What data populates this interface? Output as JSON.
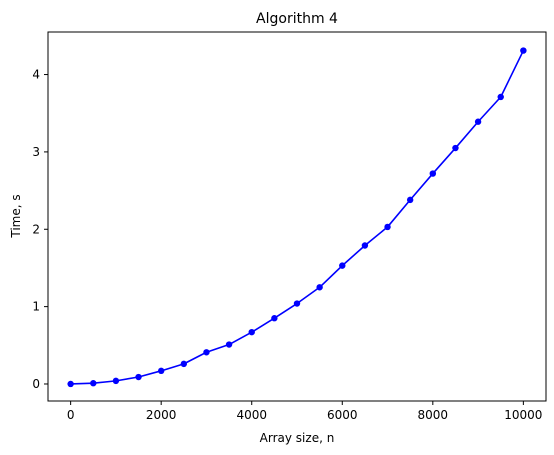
{
  "chart_data": {
    "type": "line",
    "title": "Algorithm 4",
    "xlabel": "Array size, n",
    "ylabel": "Time, s",
    "xlim": [
      -500,
      10500
    ],
    "ylim": [
      -0.22,
      4.55
    ],
    "xticks": [
      0,
      2000,
      4000,
      6000,
      8000,
      10000
    ],
    "yticks": [
      0,
      1,
      2,
      3,
      4
    ],
    "grid": false,
    "series": [
      {
        "color": "#0000ff",
        "marker": "circle",
        "x": [
          0,
          500,
          1000,
          1500,
          2000,
          2500,
          3000,
          3500,
          4000,
          4500,
          5000,
          5500,
          6000,
          6500,
          7000,
          7500,
          8000,
          8500,
          9000,
          9500,
          10000
        ],
        "y": [
          0.0,
          0.01,
          0.04,
          0.09,
          0.17,
          0.26,
          0.41,
          0.51,
          0.67,
          0.85,
          1.04,
          1.25,
          1.53,
          1.79,
          2.03,
          2.38,
          2.72,
          3.05,
          3.39,
          3.71,
          4.31
        ]
      }
    ]
  }
}
